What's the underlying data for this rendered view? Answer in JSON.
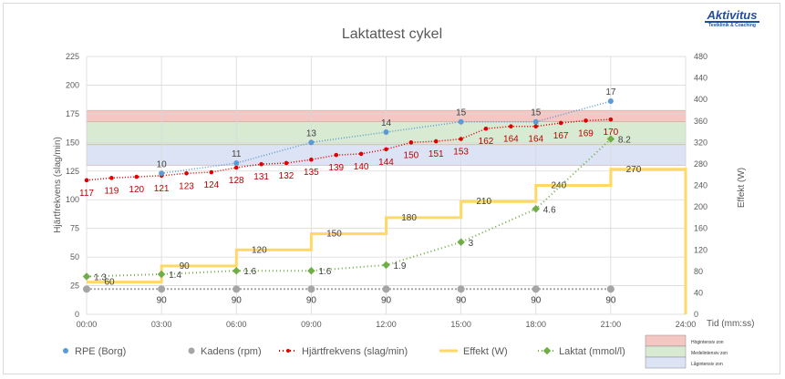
{
  "chart_data": {
    "type": "line",
    "title": "Laktattest cykel",
    "xlabel": "Tid (mm:ss)",
    "ylabel_left": "Hjärtfrekvens (slag/min)",
    "ylabel_right": "Effekt (W)",
    "x_ticks": [
      "00:00",
      "03:00",
      "06:00",
      "09:00",
      "12:00",
      "15:00",
      "18:00",
      "21:00",
      "24:00"
    ],
    "y_left_ticks": [
      0,
      25,
      50,
      75,
      100,
      125,
      150,
      175,
      200,
      225
    ],
    "y_right_ticks": [
      0,
      40,
      80,
      120,
      160,
      200,
      240,
      280,
      320,
      360,
      400,
      440,
      480
    ],
    "ylim_left": [
      0,
      225
    ],
    "ylim_right": [
      0,
      480
    ],
    "xlim_min": [
      0,
      24
    ],
    "grid": true,
    "legend_position": "bottom",
    "zones": [
      {
        "name": "Högintensiv zon",
        "from": 168,
        "to": 178,
        "color": "#f4c7c3"
      },
      {
        "name": "Medelintensiv zon",
        "from": 148,
        "to": 168,
        "color": "#d9ead3"
      },
      {
        "name": "Lågintensiv zon",
        "from": 130,
        "to": 148,
        "color": "#dbe3f5"
      }
    ],
    "series": [
      {
        "name": "RPE (Borg)",
        "axis": "left",
        "color": "#5b9bd5",
        "style": "dotted-marker",
        "x": [
          3,
          6,
          9,
          12,
          15,
          18,
          21
        ],
        "values": [
          123,
          132,
          150,
          159,
          168,
          168,
          186
        ],
        "labels": [
          "10",
          "11",
          "13",
          "14",
          "15",
          "15",
          "17"
        ]
      },
      {
        "name": "Kadens (rpm)",
        "axis": "left",
        "color": "#a5a5a5",
        "style": "dotted-marker",
        "x": [
          0,
          3,
          6,
          9,
          12,
          15,
          18,
          21
        ],
        "values": [
          22,
          22,
          22,
          22,
          22,
          22,
          22,
          22
        ],
        "labels": [
          "",
          "90",
          "90",
          "90",
          "90",
          "90",
          "90",
          "90"
        ]
      },
      {
        "name": "Hjärtfrekvens (slag/min)",
        "axis": "left",
        "color": "#e00000",
        "style": "dotted-marker",
        "x": [
          0,
          1,
          2,
          3,
          4,
          5,
          6,
          7,
          8,
          9,
          10,
          11,
          12,
          13,
          14,
          15,
          16,
          17,
          18,
          19,
          20,
          21
        ],
        "values": [
          117,
          119,
          120,
          121,
          123,
          124,
          128,
          131,
          132,
          135,
          139,
          140,
          144,
          150,
          151,
          153,
          162,
          164,
          164,
          167,
          169,
          170
        ]
      },
      {
        "name": "Effekt (W)",
        "axis": "right",
        "color": "#ffd966",
        "style": "step",
        "x": [
          0,
          3,
          6,
          9,
          12,
          15,
          18,
          21,
          24
        ],
        "values": [
          60,
          90,
          120,
          150,
          180,
          210,
          240,
          270,
          0
        ],
        "labels": [
          "60",
          "90",
          "120",
          "150",
          "180",
          "210",
          "240",
          "270",
          ""
        ]
      },
      {
        "name": "Laktat (mmol/l)",
        "axis": "left",
        "color": "#70ad47",
        "style": "dotted-marker",
        "x": [
          0,
          3,
          6,
          9,
          12,
          15,
          18,
          21
        ],
        "values": [
          33,
          35,
          38,
          38,
          43,
          63,
          92,
          153
        ],
        "labels": [
          "1.3",
          "1.4",
          "1.6",
          "1.6",
          "1.9",
          "3",
          "4.6",
          "8.2"
        ]
      }
    ]
  },
  "legend": {
    "rpe": "RPE (Borg)",
    "kadens": "Kadens (rpm)",
    "hf": "Hjärtfrekvens (slag/min)",
    "effekt": "Effekt (W)",
    "laktat": "Laktat (mmol/l)"
  },
  "zone_legend": [
    "Högintensiv zon",
    "Medelintensiv zon",
    "Lågintensiv zon"
  ],
  "logo": {
    "name": "Aktivitus",
    "tagline": "Testklinik & Coaching"
  }
}
